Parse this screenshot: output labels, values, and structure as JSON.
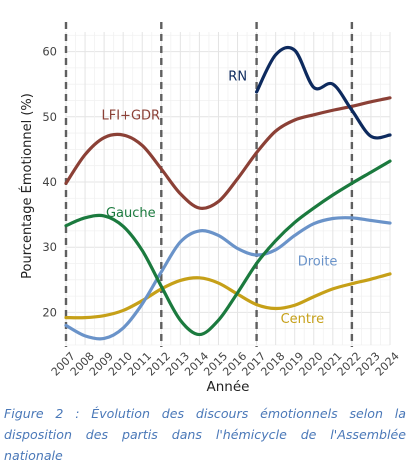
{
  "caption": "Figure 2 : Évolution des discours émotionnels selon la disposition des partis dans l'hémicycle de l'Assemblée nationale",
  "chart_data": {
    "type": "line",
    "xlabel": "Année",
    "ylabel": "Pourcentage Émotionnel (%)",
    "xlim": [
      2007,
      2024
    ],
    "ylim": [
      15,
      63
    ],
    "x_ticks": [
      2007,
      2008,
      2009,
      2010,
      2011,
      2012,
      2013,
      2014,
      2015,
      2016,
      2017,
      2018,
      2019,
      2020,
      2021,
      2022,
      2023,
      2024
    ],
    "y_ticks": [
      20,
      30,
      40,
      50,
      60
    ],
    "grid": true,
    "legend": "labels placed directly on lines",
    "vertical_dashed_lines_at": [
      2007,
      2012,
      2017,
      2022
    ],
    "series": [
      {
        "name": "LFI+GDR",
        "color": "#8b4036",
        "x": [
          2007,
          2008,
          2009,
          2010,
          2011,
          2012,
          2013,
          2014,
          2015,
          2016,
          2017,
          2018,
          2019,
          2020,
          2021,
          2022,
          2023,
          2024
        ],
        "values": [
          39.8,
          44.2,
          46.8,
          47.2,
          45.6,
          42.0,
          38.2,
          36.0,
          37.0,
          40.5,
          44.5,
          47.8,
          49.5,
          50.3,
          51.0,
          51.6,
          52.3,
          52.9
        ]
      },
      {
        "name": "Gauche",
        "color": "#1b7a3e",
        "x": [
          2007,
          2008,
          2009,
          2010,
          2011,
          2012,
          2013,
          2014,
          2015,
          2016,
          2017,
          2018,
          2019,
          2020,
          2021,
          2022,
          2023,
          2024
        ],
        "values": [
          33.3,
          34.5,
          34.8,
          33.2,
          29.5,
          24.0,
          18.8,
          16.6,
          18.8,
          23.0,
          27.5,
          31.0,
          33.8,
          36.0,
          38.0,
          39.8,
          41.5,
          43.2
        ]
      },
      {
        "name": "Droite",
        "color": "#6a93c9",
        "x": [
          2007,
          2008,
          2009,
          2010,
          2011,
          2012,
          2013,
          2014,
          2015,
          2016,
          2017,
          2018,
          2019,
          2020,
          2021,
          2022,
          2023,
          2024
        ],
        "values": [
          18.0,
          16.4,
          16.0,
          17.6,
          21.3,
          26.2,
          30.8,
          32.5,
          31.8,
          29.8,
          28.8,
          29.6,
          31.8,
          33.6,
          34.4,
          34.5,
          34.1,
          33.7
        ]
      },
      {
        "name": "Centre",
        "color": "#c6a018",
        "x": [
          2007,
          2008,
          2009,
          2010,
          2011,
          2012,
          2013,
          2014,
          2015,
          2016,
          2017,
          2018,
          2019,
          2020,
          2021,
          2022,
          2023,
          2024
        ],
        "values": [
          19.2,
          19.2,
          19.5,
          20.3,
          21.8,
          23.6,
          24.9,
          25.3,
          24.5,
          22.8,
          21.2,
          20.6,
          21.1,
          22.4,
          23.6,
          24.4,
          25.1,
          25.9
        ]
      },
      {
        "name": "RN",
        "color": "#0d2a5e",
        "x": [
          2017,
          2018,
          2019,
          2020,
          2021,
          2022,
          2023,
          2024
        ],
        "values": [
          53.8,
          59.5,
          60.2,
          54.5,
          55.0,
          51.0,
          47.0,
          47.2
        ]
      }
    ]
  }
}
